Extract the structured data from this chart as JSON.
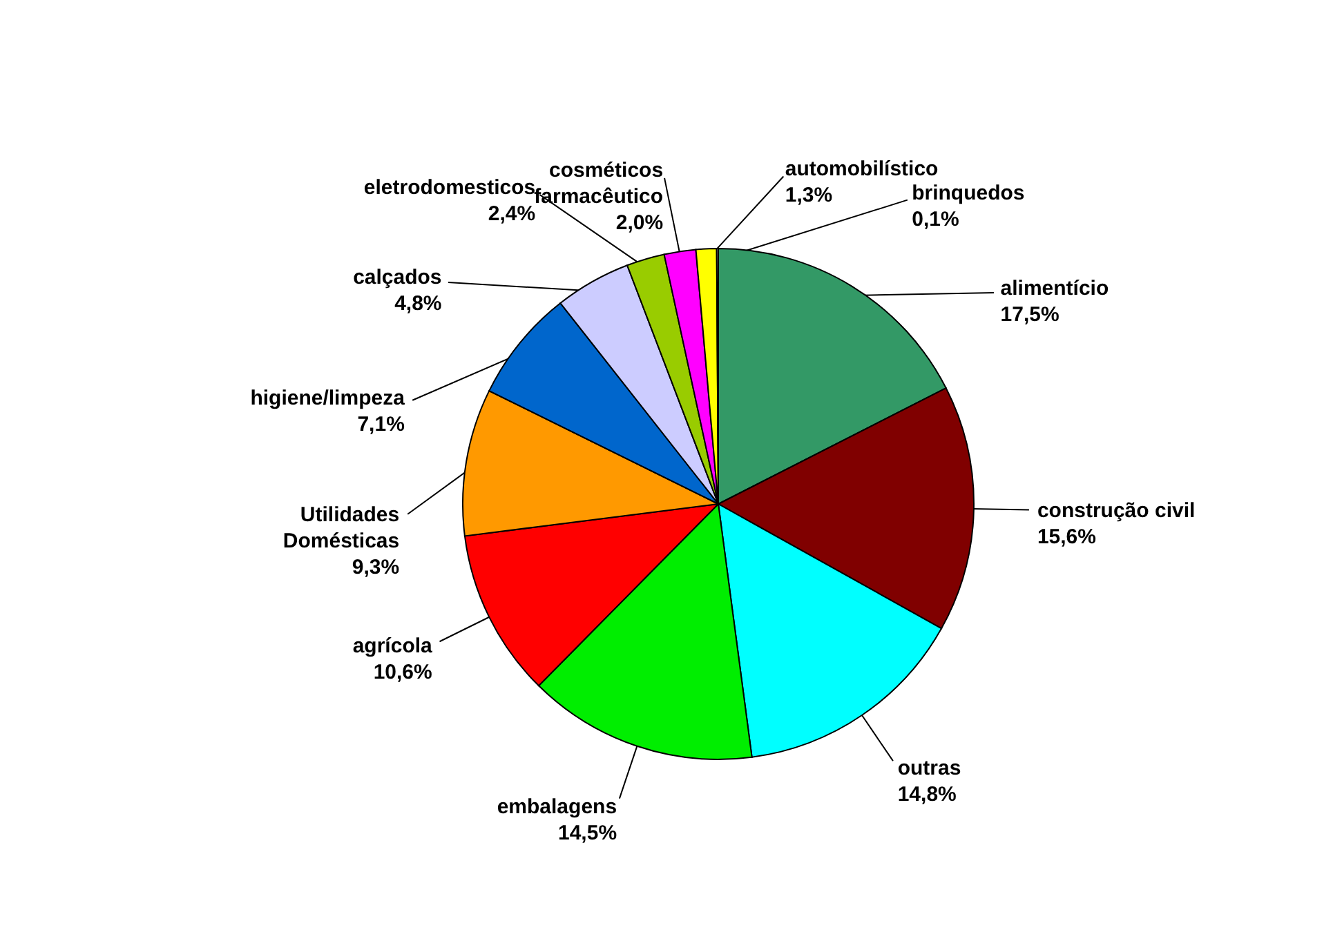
{
  "chart_data": {
    "type": "pie",
    "categories": [
      "alimentício",
      "construção civil",
      "outras",
      "embalagens",
      "agrícola",
      "Utilidades\nDomésticas",
      "higiene/limpeza",
      "calçados",
      "eletrodomesticos",
      "cosméticos\nfarmacêutico",
      "automobilístico",
      "brinquedos"
    ],
    "values": [
      17.5,
      15.6,
      14.8,
      14.5,
      10.6,
      9.3,
      7.1,
      4.8,
      2.4,
      2.0,
      1.3,
      0.1
    ],
    "value_labels": [
      "17,5%",
      "15,6%",
      "14,8%",
      "14,5%",
      "10,6%",
      "9,3%",
      "7,1%",
      "4,8%",
      "2,4%",
      "2,0%",
      "1,3%",
      "0,1%"
    ],
    "colors": [
      "#339966",
      "#800000",
      "#00ffff",
      "#00ee00",
      "#ff0000",
      "#ff9900",
      "#0066cc",
      "#ccccff",
      "#99cc00",
      "#ff00ff",
      "#ffff00",
      "#ffffff"
    ]
  }
}
